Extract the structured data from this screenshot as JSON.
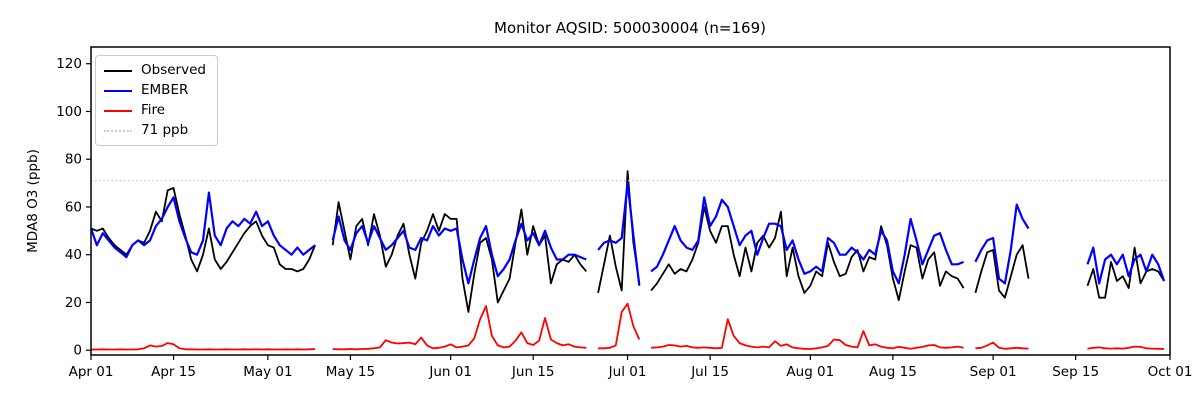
{
  "title": "Monitor AQSID: 500030004 (n=169)",
  "legend": {
    "items": [
      {
        "label": "Observed",
        "color": "#000000",
        "style": "solid"
      },
      {
        "label": "EMBER",
        "color": "#0000ff",
        "style": "solid"
      },
      {
        "label": "Fire",
        "color": "#ff0000",
        "style": "solid"
      },
      {
        "label": "71 ppb",
        "color": "#cccccc",
        "style": "dotted"
      }
    ]
  },
  "chart_data": {
    "type": "line",
    "title": "Monitor AQSID: 500030004 (n=169)",
    "xlabel": "",
    "ylabel": "MDA8 O3 (ppb)",
    "x_unit": "days since Apr 01 (daily values, Apr 01 - Sep 30)",
    "xlim": [
      0,
      183
    ],
    "ylim": [
      -2,
      127
    ],
    "grid": false,
    "legend_position": "upper left",
    "yticks": [
      0,
      20,
      40,
      60,
      80,
      100,
      120
    ],
    "xticks": [
      {
        "day": 0,
        "label": "Apr 01"
      },
      {
        "day": 14,
        "label": "Apr 15"
      },
      {
        "day": 30,
        "label": "May 01"
      },
      {
        "day": 44,
        "label": "May 15"
      },
      {
        "day": 61,
        "label": "Jun 01"
      },
      {
        "day": 75,
        "label": "Jun 15"
      },
      {
        "day": 91,
        "label": "Jul 01"
      },
      {
        "day": 105,
        "label": "Jul 15"
      },
      {
        "day": 122,
        "label": "Aug 01"
      },
      {
        "day": 136,
        "label": "Aug 15"
      },
      {
        "day": 153,
        "label": "Sep 01"
      },
      {
        "day": 167,
        "label": "Sep 15"
      },
      {
        "day": 183,
        "label": "Oct 01"
      }
    ],
    "threshold": {
      "value": 71,
      "label": "71 ppb",
      "color": "#cccccc",
      "line_style": "dotted"
    },
    "series": [
      {
        "name": "Observed",
        "color": "#000000",
        "width": 1.8,
        "values": [
          51,
          50,
          51,
          47,
          44,
          42,
          40,
          44,
          46,
          45,
          50,
          58,
          54,
          67,
          68,
          57,
          48,
          38,
          33,
          40,
          51,
          38,
          34,
          37,
          41,
          45,
          49,
          52,
          54,
          48,
          44,
          43,
          36,
          34,
          34,
          33,
          34,
          38,
          44,
          null,
          null,
          44,
          62,
          50,
          38,
          52,
          55,
          44,
          57,
          48,
          35,
          40,
          48,
          53,
          40,
          30,
          45,
          50,
          57,
          50,
          57,
          55,
          55,
          30,
          16,
          32,
          45,
          47,
          38,
          20,
          25,
          30,
          45,
          59,
          40,
          52,
          44,
          48,
          28,
          36,
          38,
          37,
          40,
          36,
          33,
          null,
          24,
          36,
          48,
          35,
          25,
          75,
          45,
          28,
          null,
          25,
          28,
          32,
          36,
          32,
          34,
          33,
          38,
          45,
          60,
          50,
          45,
          52,
          52,
          40,
          31,
          43,
          33,
          45,
          48,
          43,
          47,
          58,
          31,
          43,
          31,
          24,
          27,
          33,
          31,
          45,
          37,
          31,
          32,
          39,
          42,
          33,
          39,
          38,
          52,
          44,
          30,
          21,
          33,
          44,
          43,
          30,
          38,
          41,
          27,
          33,
          31,
          30,
          26,
          null,
          24,
          33,
          41,
          42,
          25,
          22,
          31,
          40,
          44,
          30,
          null,
          null,
          null,
          null,
          null,
          null,
          null,
          null,
          null,
          27,
          34,
          22,
          22,
          37,
          29,
          31,
          26,
          43,
          28,
          33,
          34,
          33,
          29
        ]
      },
      {
        "name": "EMBER",
        "color": "#0000ff",
        "width": 2.2,
        "values": [
          51,
          44,
          49,
          46,
          43,
          41,
          39,
          44,
          46,
          44,
          46,
          52,
          55,
          60,
          64,
          54,
          47,
          41,
          40,
          46,
          66,
          48,
          44,
          51,
          54,
          52,
          55,
          53,
          58,
          52,
          54,
          48,
          44,
          42,
          40,
          43,
          40,
          42,
          44,
          null,
          null,
          46,
          56,
          46,
          42,
          49,
          52,
          45,
          52,
          47,
          42,
          44,
          47,
          50,
          43,
          42,
          47,
          46,
          52,
          48,
          51,
          50,
          51,
          38,
          28,
          38,
          47,
          52,
          40,
          31,
          34,
          38,
          46,
          53,
          46,
          49,
          44,
          50,
          43,
          38,
          38,
          40,
          40,
          39,
          38,
          null,
          42,
          45,
          46,
          45,
          47,
          70,
          48,
          27,
          null,
          33,
          35,
          40,
          46,
          52,
          46,
          43,
          42,
          46,
          64,
          52,
          56,
          63,
          60,
          52,
          44,
          48,
          50,
          40,
          47,
          53,
          53,
          52,
          42,
          46,
          38,
          32,
          33,
          35,
          33,
          47,
          45,
          40,
          40,
          43,
          41,
          38,
          42,
          40,
          50,
          46,
          33,
          28,
          40,
          55,
          46,
          36,
          42,
          48,
          49,
          42,
          36,
          36,
          37,
          null,
          37,
          42,
          46,
          47,
          30,
          28,
          42,
          61,
          55,
          51,
          null,
          null,
          null,
          null,
          null,
          null,
          null,
          null,
          null,
          36,
          43,
          28,
          38,
          40,
          36,
          40,
          31,
          38,
          40,
          33,
          40,
          36,
          29
        ]
      },
      {
        "name": "Fire",
        "color": "#ff0000",
        "width": 1.8,
        "values": [
          0.3,
          0.3,
          0.4,
          0.3,
          0.3,
          0.4,
          0.3,
          0.3,
          0.4,
          0.8,
          2,
          1.5,
          1.8,
          3,
          2.5,
          0.8,
          0.4,
          0.4,
          0.3,
          0.3,
          0.4,
          0.3,
          0.3,
          0.4,
          0.3,
          0.3,
          0.4,
          0.3,
          0.4,
          0.3,
          0.4,
          0.3,
          0.3,
          0.4,
          0.3,
          0.4,
          0.3,
          0.4,
          0.5,
          null,
          null,
          0.5,
          0.4,
          0.4,
          0.5,
          0.4,
          0.5,
          0.6,
          0.8,
          1.2,
          4.2,
          3.2,
          2.8,
          3,
          3.2,
          2.5,
          5.3,
          2,
          0.8,
          1,
          1.5,
          2.5,
          1.2,
          1.5,
          2,
          5,
          13,
          18.5,
          6,
          2,
          1.2,
          1.5,
          4,
          7.5,
          3,
          2.2,
          4,
          13.5,
          4.5,
          3,
          2,
          2.5,
          1.5,
          1.2,
          1,
          null,
          0.8,
          0.8,
          1,
          2,
          16,
          19.5,
          10,
          4.5,
          null,
          1,
          1.2,
          1.5,
          2.2,
          2,
          1.5,
          1.8,
          1.2,
          1,
          1.2,
          1,
          0.8,
          1,
          13,
          6,
          3,
          2,
          1.5,
          1.2,
          1.5,
          1.2,
          3.8,
          1.8,
          2.5,
          1.2,
          0.8,
          0.6,
          0.5,
          0.8,
          1.2,
          1.8,
          4.5,
          4.2,
          2.2,
          1.5,
          1.2,
          8,
          2,
          2.5,
          1.5,
          1,
          0.8,
          1.4,
          1,
          0.6,
          1,
          1.4,
          2,
          2.2,
          1.2,
          1,
          1.2,
          1.5,
          1,
          null,
          0.8,
          1,
          2,
          3.2,
          1,
          0.6,
          0.8,
          1,
          0.8,
          0.7,
          null,
          null,
          null,
          null,
          null,
          null,
          null,
          null,
          null,
          0.6,
          1,
          1.2,
          0.8,
          0.7,
          0.8,
          0.7,
          1,
          1.5,
          1.4,
          0.8,
          0.7,
          0.6,
          0.5
        ]
      }
    ]
  }
}
